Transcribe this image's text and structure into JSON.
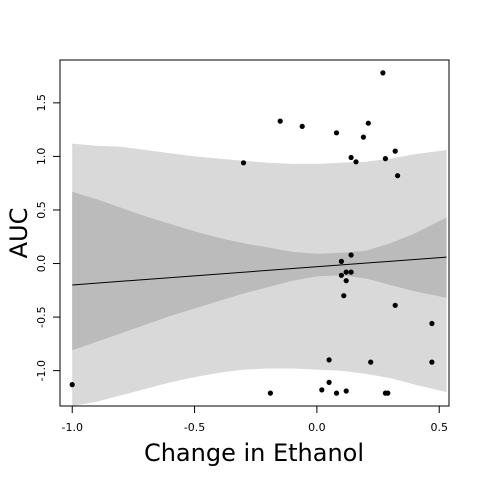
{
  "chart_data": {
    "type": "scatter",
    "xlabel": "Change in Ethanol",
    "ylabel": "AUC",
    "xlim": [
      -1.05,
      0.54
    ],
    "ylim": [
      -1.33,
      1.9
    ],
    "x_ticks": [
      -1.0,
      -0.5,
      0.0,
      0.5
    ],
    "x_tick_labels": [
      "-1.0",
      "-0.5",
      "0.0",
      "0.5"
    ],
    "y_ticks": [
      -1.0,
      -0.5,
      0.0,
      0.5,
      1.0,
      1.5
    ],
    "y_tick_labels": [
      "-1.0",
      "-0.5",
      "0.0",
      "0.5",
      "1.0",
      "1.5"
    ],
    "grid": false,
    "fit_line": {
      "x": [
        -1.0,
        0.53
      ],
      "y": [
        -0.2,
        0.06
      ],
      "color": "#000000"
    },
    "bands": [
      {
        "color": "#d9d9d9",
        "x": [
          -1.0,
          -0.9,
          -0.8,
          -0.7,
          -0.6,
          -0.5,
          -0.4,
          -0.3,
          -0.2,
          -0.1,
          0.0,
          0.1,
          0.2,
          0.3,
          0.4,
          0.53
        ],
        "upper": [
          1.12,
          1.1,
          1.09,
          1.06,
          1.03,
          1.0,
          0.98,
          0.96,
          0.94,
          0.93,
          0.93,
          0.94,
          0.95,
          0.98,
          1.02,
          1.06
        ],
        "lower": [
          -1.33,
          -1.29,
          -1.23,
          -1.17,
          -1.11,
          -1.06,
          -1.02,
          -0.99,
          -0.98,
          -0.98,
          -0.99,
          -1.0,
          -1.03,
          -1.07,
          -1.13,
          -1.2
        ]
      },
      {
        "color": "#bbbbbb",
        "x": [
          -1.0,
          -0.9,
          -0.8,
          -0.7,
          -0.6,
          -0.5,
          -0.4,
          -0.3,
          -0.2,
          -0.1,
          0.0,
          0.1,
          0.2,
          0.3,
          0.4,
          0.53
        ],
        "upper": [
          0.67,
          0.6,
          0.52,
          0.44,
          0.37,
          0.3,
          0.24,
          0.19,
          0.15,
          0.11,
          0.09,
          0.1,
          0.12,
          0.19,
          0.28,
          0.43
        ],
        "lower": [
          -0.81,
          -0.73,
          -0.65,
          -0.57,
          -0.49,
          -0.42,
          -0.35,
          -0.28,
          -0.22,
          -0.16,
          -0.12,
          -0.11,
          -0.14,
          -0.2,
          -0.26,
          -0.32
        ]
      }
    ],
    "points": [
      {
        "x": -1.0,
        "y": -1.13
      },
      {
        "x": -0.3,
        "y": 0.94
      },
      {
        "x": -0.15,
        "y": 1.33
      },
      {
        "x": -0.06,
        "y": 1.28
      },
      {
        "x": -0.19,
        "y": -1.21
      },
      {
        "x": 0.02,
        "y": -1.18
      },
      {
        "x": 0.05,
        "y": -0.9
      },
      {
        "x": 0.05,
        "y": -1.11
      },
      {
        "x": 0.08,
        "y": -1.21
      },
      {
        "x": 0.08,
        "y": 1.22
      },
      {
        "x": 0.1,
        "y": 0.02
      },
      {
        "x": 0.1,
        "y": -0.11
      },
      {
        "x": 0.11,
        "y": -0.3
      },
      {
        "x": 0.12,
        "y": -0.08
      },
      {
        "x": 0.12,
        "y": -0.16
      },
      {
        "x": 0.12,
        "y": -1.19
      },
      {
        "x": 0.14,
        "y": 0.08
      },
      {
        "x": 0.14,
        "y": -0.08
      },
      {
        "x": 0.14,
        "y": 0.99
      },
      {
        "x": 0.16,
        "y": 0.95
      },
      {
        "x": 0.19,
        "y": 1.18
      },
      {
        "x": 0.21,
        "y": 1.31
      },
      {
        "x": 0.22,
        "y": -0.92
      },
      {
        "x": 0.27,
        "y": 1.78
      },
      {
        "x": 0.28,
        "y": 0.98
      },
      {
        "x": 0.28,
        "y": -1.21
      },
      {
        "x": 0.29,
        "y": -1.21
      },
      {
        "x": 0.32,
        "y": 1.05
      },
      {
        "x": 0.32,
        "y": -0.39
      },
      {
        "x": 0.33,
        "y": 0.82
      },
      {
        "x": 0.47,
        "y": -0.56
      },
      {
        "x": 0.47,
        "y": -0.92
      }
    ]
  }
}
